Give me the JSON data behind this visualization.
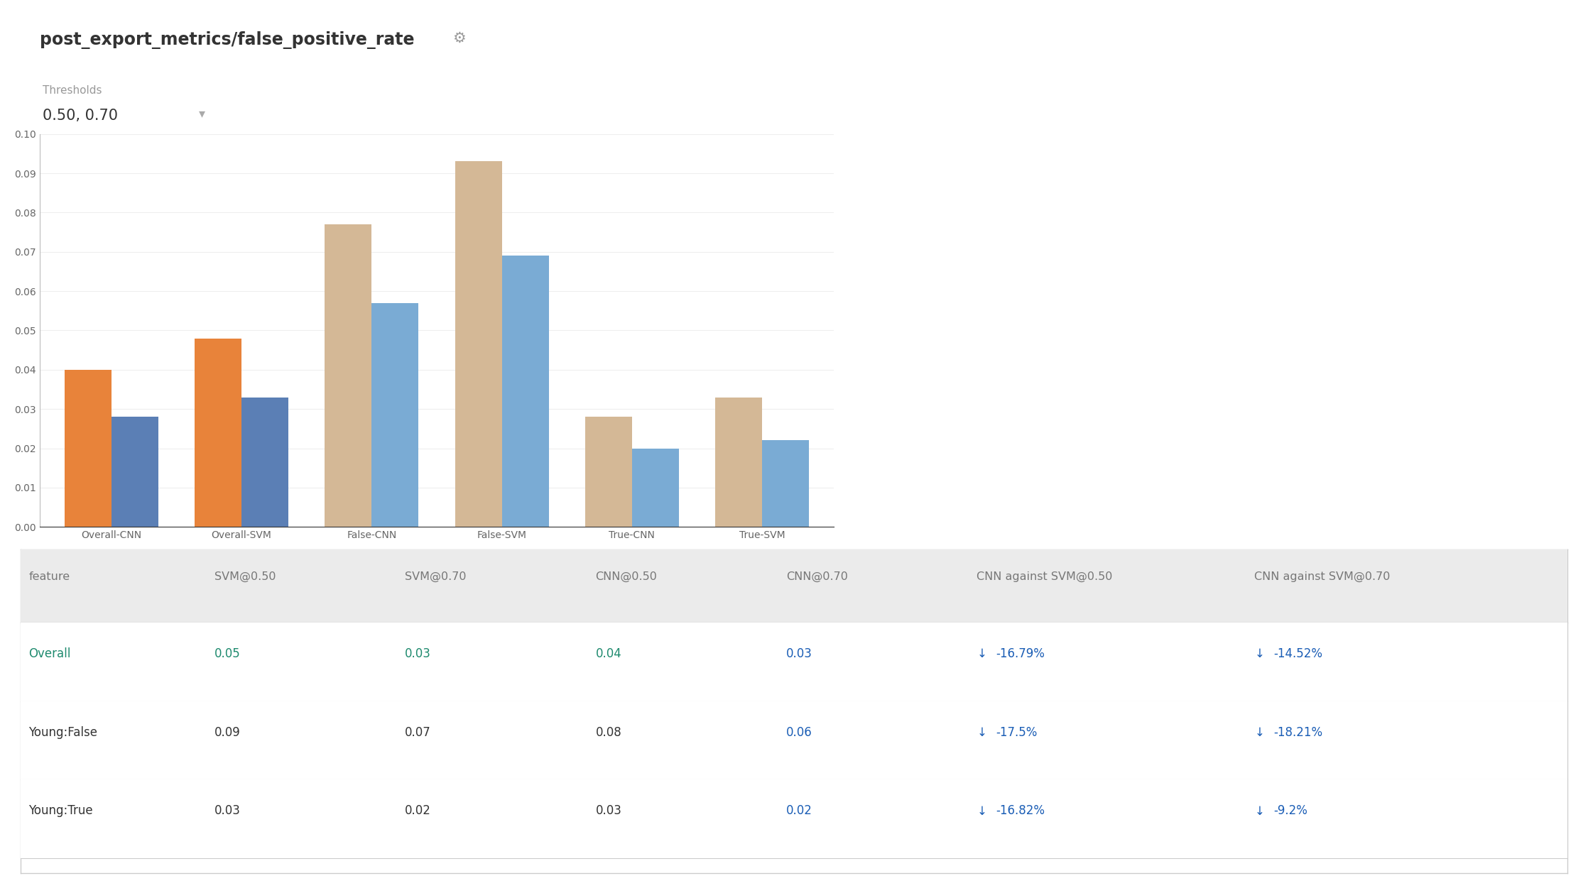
{
  "title": "post_export_metrics/false_positive_rate",
  "thresholds_label": "Thresholds",
  "thresholds_value": "0.50, 0.70",
  "groups": [
    "Overall-CNN",
    "Overall-SVM",
    "False-CNN",
    "False-SVM",
    "True-CNN",
    "True-SVM"
  ],
  "bar1_values": [
    0.04,
    0.048,
    0.077,
    0.093,
    0.028,
    0.033
  ],
  "bar2_values": [
    0.028,
    0.033,
    0.057,
    0.069,
    0.02,
    0.022
  ],
  "bar1_colors_per_group": [
    "#E8833A",
    "#E8833A",
    "#D4B896",
    "#D4B896",
    "#D4B896",
    "#D4B896"
  ],
  "bar2_colors_per_group": [
    "#5B7FB5",
    "#5B7FB5",
    "#7AABD4",
    "#7AABD4",
    "#7AABD4",
    "#7AABD4"
  ],
  "ylim": [
    0,
    0.1
  ],
  "yticks": [
    0.0,
    0.01,
    0.02,
    0.03,
    0.04,
    0.05,
    0.06,
    0.07,
    0.08,
    0.09,
    0.1
  ],
  "background_color": "#ffffff",
  "axis_tick_color": "#666666",
  "table_headers": [
    "feature",
    "SVM@0.50",
    "SVM@0.70",
    "CNN@0.50",
    "CNN@0.70",
    "CNN against SVM@0.50",
    "CNN against SVM@0.70"
  ],
  "table_rows": [
    [
      "Overall",
      "0.05",
      "0.03",
      "0.04",
      "0.03",
      "↓ -16.79%",
      "↓ -14.52%"
    ],
    [
      "Young:False",
      "0.09",
      "0.07",
      "0.08",
      "0.06",
      "↓ -17.5%",
      "↓ -18.21%"
    ],
    [
      "Young:True",
      "0.03",
      "0.02",
      "0.03",
      "0.02",
      "↓ -16.82%",
      "↓ -9.2%"
    ]
  ],
  "overall_row_color": "#1E8A6E",
  "arrow_color": "#1A5DB5",
  "table_header_color": "#777777",
  "table_text_color": "#333333",
  "table_header_bg": "#EBEBEB",
  "table_border_color": "#CCCCCC",
  "grid_color": "#EEEEEE",
  "title_color": "#333333",
  "gear_color": "#999999",
  "threshold_label_color": "#999999",
  "threshold_value_color": "#333333"
}
